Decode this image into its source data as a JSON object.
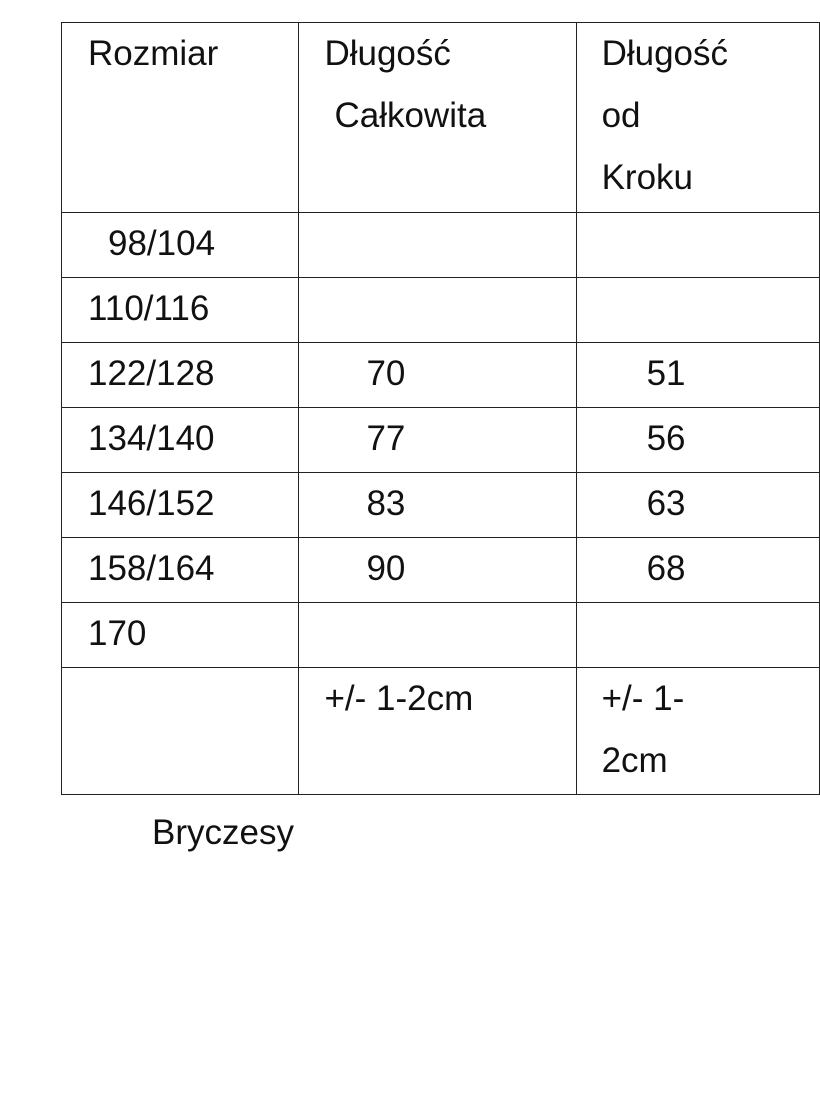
{
  "table": {
    "headers": {
      "size": "Rozmiar",
      "total_length": [
        "Długość",
        "Całkowita"
      ],
      "inseam_length": [
        "Długość",
        "od",
        "Kroku"
      ]
    },
    "rows": [
      {
        "size": "98/104",
        "total": "",
        "inseam": ""
      },
      {
        "size": "110/116",
        "total": "",
        "inseam": ""
      },
      {
        "size": "122/128",
        "total": "70",
        "inseam": "51"
      },
      {
        "size": "134/140",
        "total": "77",
        "inseam": "56"
      },
      {
        "size": "146/152",
        "total": "83",
        "inseam": "63"
      },
      {
        "size": "158/164",
        "total": "90",
        "inseam": "68"
      },
      {
        "size": "170",
        "total": "",
        "inseam": ""
      }
    ],
    "tolerance": {
      "total": "+/- 1-2cm",
      "inseam": [
        "+/- 1-",
        "2cm"
      ]
    }
  },
  "caption": "Bryczesy"
}
